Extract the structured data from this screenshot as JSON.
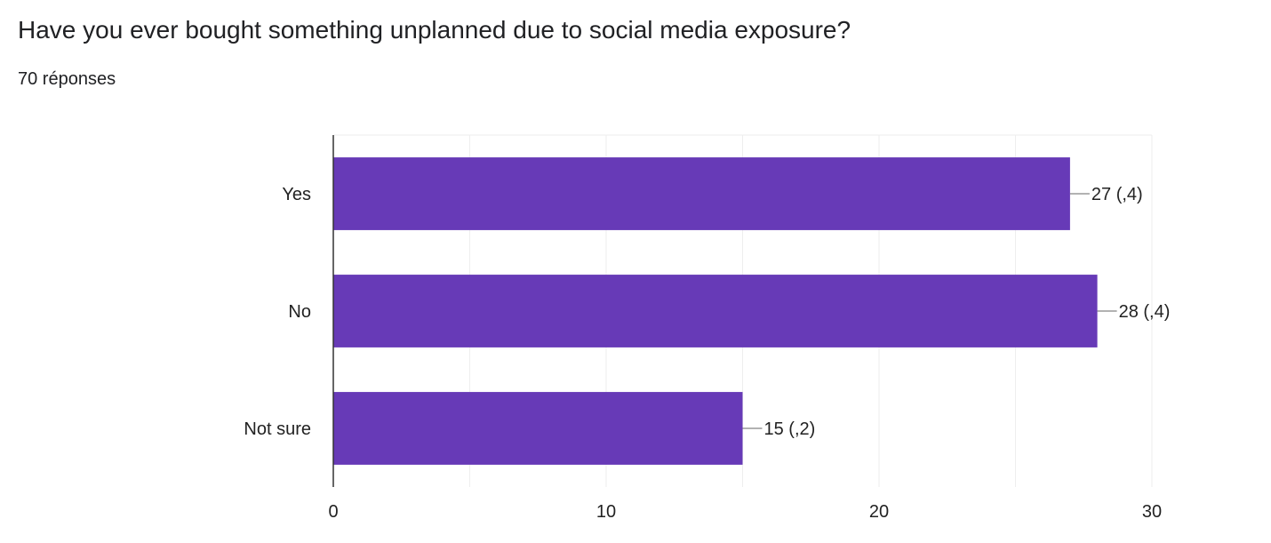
{
  "header": {
    "title": "Have you ever bought something unplanned due to social media exposure?",
    "response_count": "70 réponses"
  },
  "chart_data": {
    "type": "bar",
    "orientation": "horizontal",
    "categories": [
      "Yes",
      "No",
      "Not sure"
    ],
    "values": [
      27,
      28,
      15
    ],
    "data_labels": [
      "27 (,4)",
      "28 (,4)",
      "15 (,2)"
    ],
    "xlim": [
      0,
      30
    ],
    "x_ticks": [
      0,
      10,
      20,
      30
    ],
    "grid": true,
    "bar_color": "#673ab7",
    "gridline_color": "#eeeeee",
    "axis_color": "#333333"
  }
}
